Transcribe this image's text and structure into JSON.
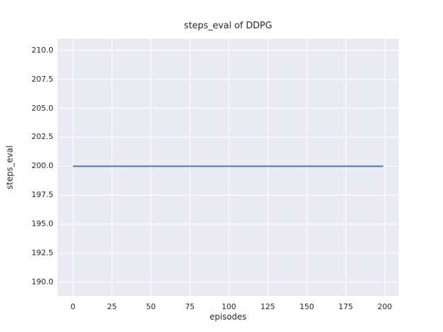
{
  "chart_data": {
    "type": "line",
    "title": "steps_eval of DDPG",
    "xlabel": "episodes",
    "ylabel": "steps_eval",
    "xlim": [
      -9.95,
      208.95
    ],
    "ylim": [
      188.8,
      211.0
    ],
    "x_ticks": [
      0,
      25,
      50,
      75,
      100,
      125,
      150,
      175,
      200
    ],
    "x_tick_labels": [
      "0",
      "25",
      "50",
      "75",
      "100",
      "125",
      "150",
      "175",
      "200"
    ],
    "y_ticks": [
      190.0,
      192.5,
      195.0,
      197.5,
      200.0,
      202.5,
      205.0,
      207.5,
      210.0
    ],
    "y_tick_labels": [
      "190.0",
      "192.5",
      "195.0",
      "197.5",
      "200.0",
      "202.5",
      "205.0",
      "207.5",
      "210.0"
    ],
    "grid": true,
    "legend": null,
    "series": [
      {
        "name": "DDPG",
        "constant_value": 200,
        "x": [
          0,
          199
        ],
        "y": [
          200,
          200
        ],
        "color": "#4c72b0",
        "linewidth": 2
      }
    ],
    "colors": {
      "figure_bg": "#ffffff",
      "axes_bg": "#eaeaf2",
      "grid": "#ffffff",
      "line": "#4c72b0",
      "text": "#262626"
    }
  }
}
